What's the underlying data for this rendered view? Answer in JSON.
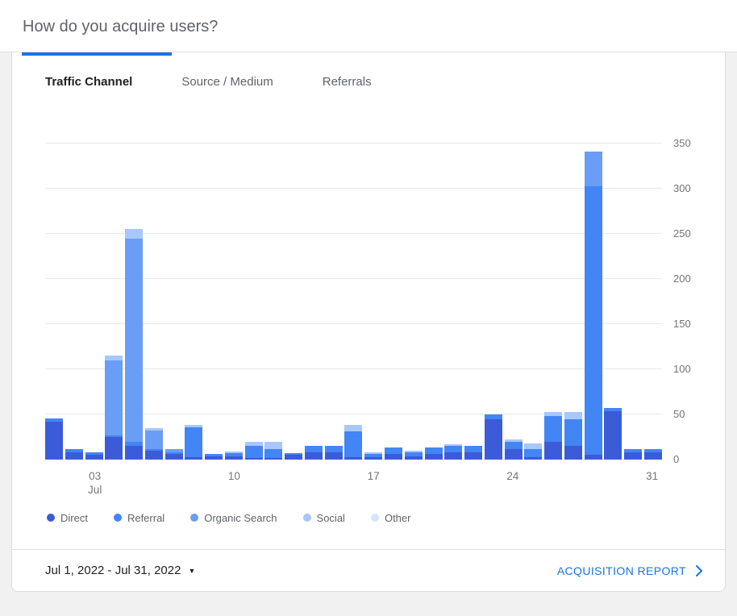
{
  "accent_color": "#1a73e8",
  "header": {
    "title": "How do you acquire users?"
  },
  "tabs": [
    {
      "label": "Traffic Channel",
      "active": true
    },
    {
      "label": "Source / Medium",
      "active": false
    },
    {
      "label": "Referrals",
      "active": false
    }
  ],
  "chart_data": {
    "type": "bar",
    "stacked": true,
    "x": [
      1,
      2,
      3,
      4,
      5,
      6,
      7,
      8,
      9,
      10,
      11,
      12,
      13,
      14,
      15,
      16,
      17,
      18,
      19,
      20,
      21,
      22,
      23,
      24,
      25,
      26,
      27,
      28,
      29,
      30,
      31
    ],
    "x_month": "Jul 2022",
    "ylim": [
      0,
      350
    ],
    "yticks": [
      0,
      50,
      100,
      150,
      200,
      250,
      300,
      350
    ],
    "xticks": [
      {
        "day": 3,
        "label": "03",
        "sublabel": "Jul"
      },
      {
        "day": 10,
        "label": "10"
      },
      {
        "day": 17,
        "label": "17"
      },
      {
        "day": 24,
        "label": "24"
      },
      {
        "day": 31,
        "label": "31"
      }
    ],
    "legend_position": "bottom",
    "grid": true,
    "series": [
      {
        "name": "Direct",
        "color": "#3c5bd9",
        "values": [
          42,
          8,
          5,
          25,
          15,
          10,
          6,
          3,
          4,
          4,
          2,
          2,
          5,
          8,
          8,
          3,
          3,
          6,
          4,
          6,
          8,
          8,
          45,
          12,
          3,
          20,
          15,
          5,
          54,
          8,
          8
        ]
      },
      {
        "name": "Referral",
        "color": "#4285f4",
        "values": [
          4,
          4,
          3,
          2,
          5,
          2,
          2,
          33,
          2,
          3,
          13,
          10,
          2,
          7,
          7,
          28,
          3,
          7,
          4,
          7,
          7,
          7,
          5,
          8,
          9,
          28,
          30,
          298,
          3,
          4,
          4
        ]
      },
      {
        "name": "Organic Search",
        "color": "#699df6",
        "values": [
          0,
          0,
          0,
          83,
          225,
          20,
          4,
          0,
          0,
          0,
          0,
          0,
          0,
          0,
          0,
          0,
          0,
          0,
          0,
          0,
          0,
          0,
          0,
          0,
          0,
          0,
          0,
          38,
          0,
          0,
          0
        ]
      },
      {
        "name": "Social",
        "color": "#a8c7fa",
        "values": [
          0,
          0,
          0,
          5,
          10,
          3,
          0,
          2,
          0,
          2,
          5,
          8,
          0,
          0,
          0,
          7,
          2,
          0,
          2,
          0,
          2,
          0,
          0,
          2,
          6,
          5,
          8,
          0,
          0,
          0,
          0
        ]
      },
      {
        "name": "Other",
        "color": "#d7e3fc",
        "values": [
          0,
          0,
          0,
          0,
          0,
          0,
          0,
          0,
          0,
          0,
          0,
          0,
          0,
          0,
          0,
          0,
          0,
          0,
          0,
          0,
          0,
          0,
          0,
          0,
          0,
          0,
          0,
          0,
          0,
          0,
          0
        ]
      }
    ]
  },
  "footer": {
    "date_range": "Jul 1, 2022 - Jul 31, 2022",
    "report_link": "ACQUISITION REPORT"
  }
}
